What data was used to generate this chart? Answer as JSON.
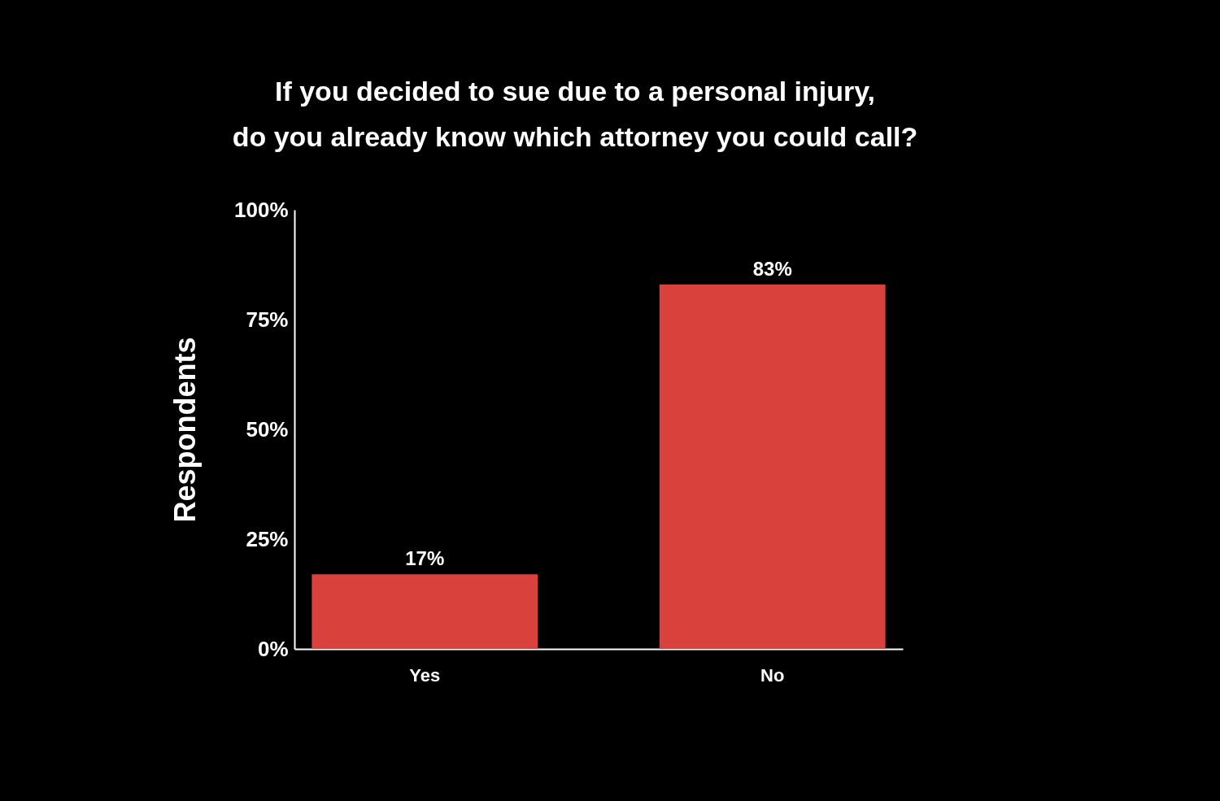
{
  "chart_data": {
    "type": "bar",
    "title": [
      "If you decided to sue due to a personal injury,",
      "do you already know which attorney you could call?"
    ],
    "ylabel": "Respondents",
    "categories": [
      "Yes",
      "No"
    ],
    "values": [
      17,
      83
    ],
    "value_labels": [
      "17%",
      "83%"
    ],
    "color": "#d9413d",
    "ylim": [
      0,
      100
    ],
    "yticks": [
      {
        "value": 0,
        "label": "0%"
      },
      {
        "value": 25,
        "label": "25%"
      },
      {
        "value": 50,
        "label": "50%"
      },
      {
        "value": 75,
        "label": "75%"
      },
      {
        "value": 100,
        "label": "100%"
      }
    ],
    "grid": false
  }
}
